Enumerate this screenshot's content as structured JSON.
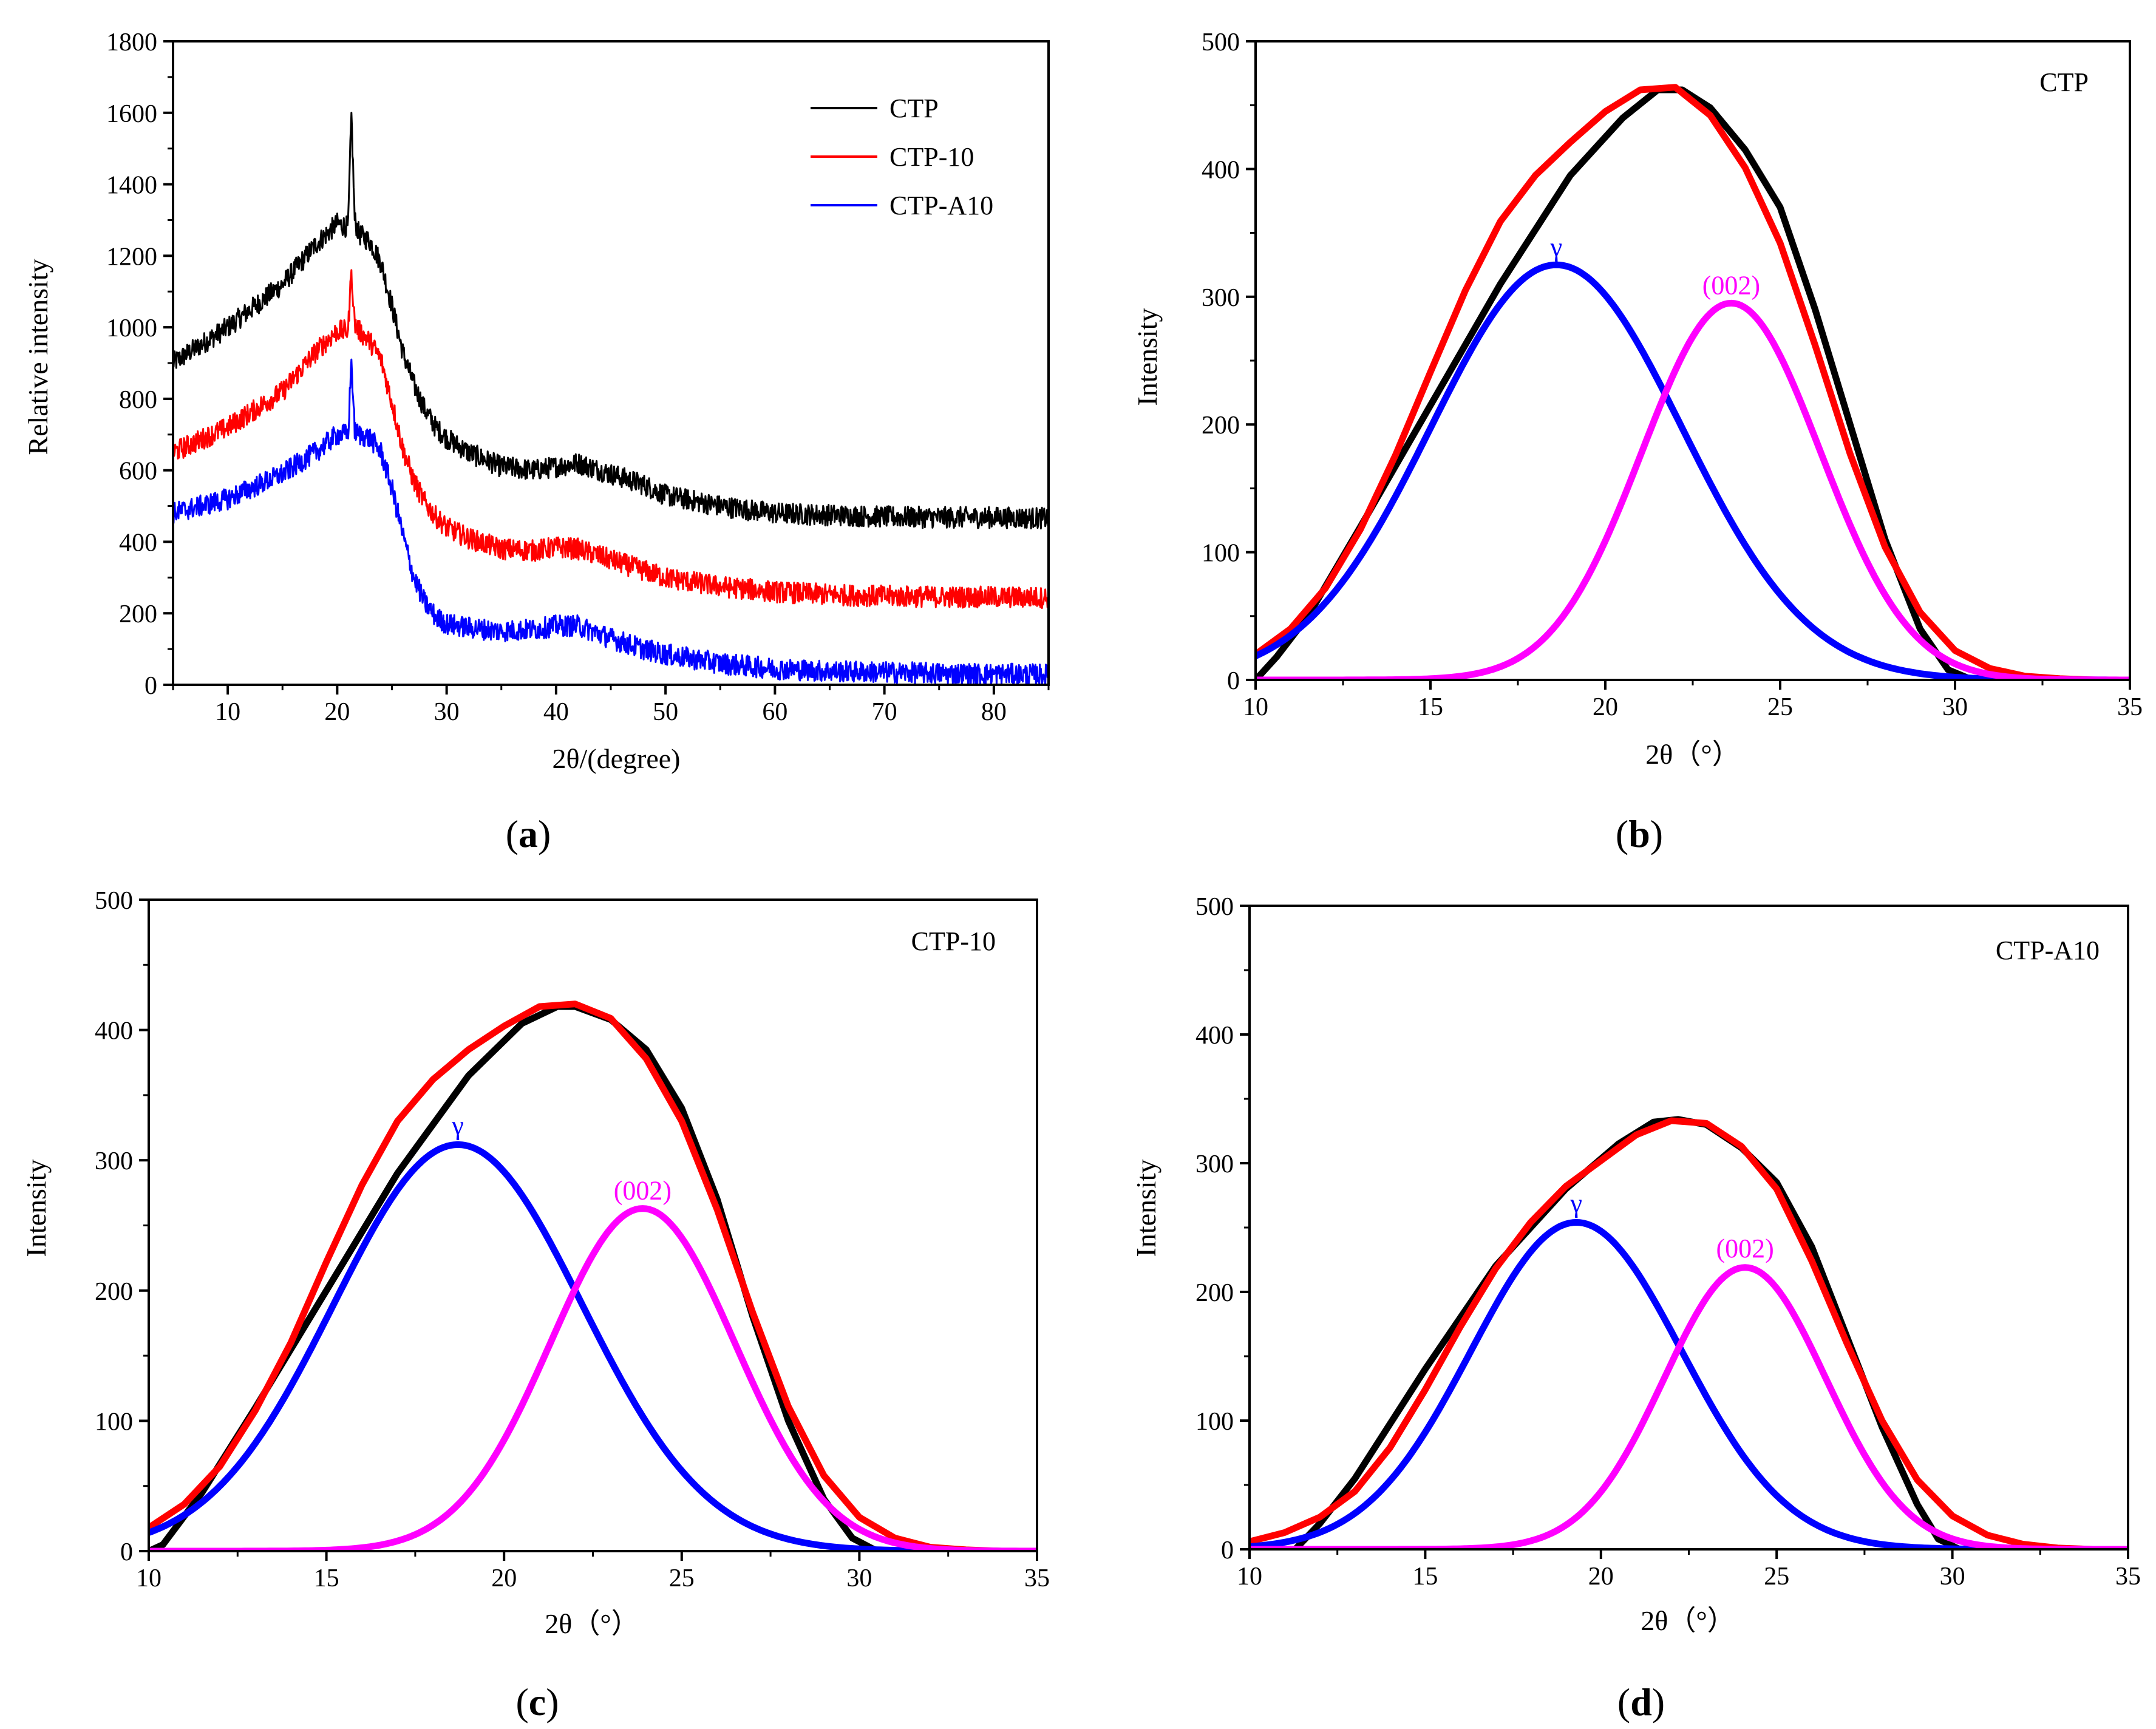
{
  "chart_data": [
    {
      "panel": "a",
      "caption": [
        "(",
        "a",
        ")"
      ],
      "type": "line",
      "xlabel": "2θ/(degree)",
      "ylabel": "Relative intensity",
      "xlim": [
        5,
        85
      ],
      "ylim": [
        0,
        1800
      ],
      "xticks": [
        10,
        20,
        30,
        40,
        50,
        60,
        70,
        80
      ],
      "yticks": [
        0,
        200,
        400,
        600,
        800,
        1000,
        1200,
        1400,
        1600,
        1800
      ],
      "legend": "top-right",
      "noisy": true,
      "series": [
        {
          "name": "CTP",
          "color": "#000000",
          "x": [
            5,
            10,
            15,
            18,
            20,
            21,
            21.3,
            21.6,
            22,
            23,
            24,
            25,
            26,
            27,
            28,
            29,
            30,
            32,
            35,
            38,
            40,
            42,
            45,
            48,
            50,
            55,
            60,
            65,
            70,
            75,
            80,
            85
          ],
          "y": [
            900,
            1000,
            1120,
            1230,
            1290,
            1280,
            1600,
            1300,
            1260,
            1240,
            1180,
            1060,
            930,
            840,
            770,
            720,
            690,
            650,
            610,
            600,
            610,
            620,
            590,
            560,
            530,
            500,
            480,
            475,
            470,
            468,
            468,
            466
          ],
          "spikes": [
            [
              21.3,
              1600
            ]
          ]
        },
        {
          "name": "CTP-10",
          "color": "#ff0000",
          "x": [
            5,
            10,
            15,
            18,
            20,
            21,
            21.3,
            21.6,
            22,
            23,
            24,
            25,
            26,
            27,
            28,
            29,
            30,
            32,
            35,
            38,
            40,
            42,
            45,
            48,
            50,
            55,
            60,
            65,
            70,
            75,
            80,
            85
          ],
          "y": [
            650,
            720,
            820,
            930,
            990,
            990,
            1160,
            1010,
            990,
            960,
            910,
            790,
            660,
            570,
            510,
            470,
            440,
            410,
            380,
            375,
            385,
            380,
            350,
            320,
            300,
            275,
            260,
            252,
            248,
            246,
            245,
            244
          ],
          "spikes": [
            [
              21.3,
              1160
            ]
          ]
        },
        {
          "name": "CTP-A10",
          "color": "#0000ff",
          "x": [
            5,
            10,
            15,
            18,
            20,
            21,
            21.3,
            21.6,
            22,
            23,
            24,
            25,
            26,
            27,
            28,
            29,
            30,
            32,
            35,
            38,
            40,
            42,
            45,
            48,
            50,
            55,
            60,
            65,
            70,
            75,
            80,
            85
          ],
          "y": [
            480,
            520,
            590,
            650,
            700,
            700,
            910,
            710,
            700,
            690,
            650,
            550,
            420,
            300,
            230,
            190,
            170,
            160,
            150,
            155,
            165,
            165,
            130,
            100,
            85,
            60,
            45,
            38,
            35,
            32,
            30,
            28
          ],
          "spikes": [
            [
              21.3,
              910
            ]
          ]
        }
      ]
    },
    {
      "panel": "b",
      "caption": [
        "(",
        "b",
        ")"
      ],
      "type": "line",
      "title": "CTP",
      "xlabel": "2θ（°）",
      "ylabel": "Intensity",
      "xlim": [
        10,
        35
      ],
      "ylim": [
        0,
        500
      ],
      "xticks": [
        10,
        15,
        20,
        25,
        30,
        35
      ],
      "yticks": [
        0,
        100,
        200,
        300,
        400,
        500
      ],
      "annotations": [
        {
          "text": "γ",
          "x": 18.6,
          "y": 332,
          "color": "#0000ff"
        },
        {
          "text": "(002)",
          "x": 23.6,
          "y": 302,
          "color": "#ff00ff"
        }
      ],
      "series": [
        {
          "color": "#000000",
          "x": [
            10,
            10.6,
            11.5,
            13,
            15,
            17,
            19,
            20.5,
            21.5,
            22.2,
            23,
            24,
            25,
            26,
            27,
            28,
            29,
            29.8,
            30.5,
            31.5,
            33,
            35
          ],
          "y": [
            0,
            18,
            50,
            120,
            215,
            310,
            395,
            440,
            462,
            462,
            448,
            415,
            370,
            290,
            200,
            110,
            40,
            8,
            0,
            0,
            0,
            0
          ]
        },
        {
          "color": "#ff0000",
          "x": [
            10,
            11,
            12,
            13,
            14,
            15,
            16,
            17,
            18,
            19,
            20,
            21,
            22,
            23,
            24,
            25,
            26,
            27,
            28,
            29,
            30,
            31,
            32,
            33,
            34,
            35
          ],
          "y": [
            20,
            40,
            72,
            118,
            176,
            241,
            305,
            359,
            395,
            421,
            445,
            462,
            464,
            442,
            401,
            342,
            262,
            177,
            104,
            53,
            23,
            9,
            3,
            1,
            0,
            0
          ]
        },
        {
          "color": "#0000ff",
          "gaussian": {
            "amp": 325,
            "center": 18.6,
            "sigma": 3.6
          }
        },
        {
          "color": "#ff00ff",
          "gaussian": {
            "amp": 295,
            "center": 23.6,
            "sigma": 2.55
          }
        }
      ]
    },
    {
      "panel": "c",
      "caption": [
        "(",
        "c",
        ")"
      ],
      "type": "line",
      "title": "CTP-10",
      "xlabel": "2θ（°）",
      "ylabel": "Intensity",
      "xlim": [
        10,
        35
      ],
      "ylim": [
        0,
        500
      ],
      "xticks": [
        10,
        15,
        20,
        25,
        30,
        35
      ],
      "yticks": [
        0,
        100,
        200,
        300,
        400,
        500
      ],
      "annotations": [
        {
          "text": "γ",
          "x": 18.7,
          "y": 320,
          "color": "#0000ff"
        },
        {
          "text": "(002)",
          "x": 23.9,
          "y": 270,
          "color": "#ff00ff"
        }
      ],
      "series": [
        {
          "color": "#000000",
          "x": [
            10,
            10.4,
            11.5,
            13,
            15,
            17,
            19,
            20.5,
            21.5,
            22,
            23,
            24,
            25,
            26,
            27,
            28,
            29,
            29.8,
            30.5,
            31.5,
            33,
            35
          ],
          "y": [
            0,
            5,
            45,
            110,
            200,
            290,
            365,
            405,
            418,
            418,
            408,
            385,
            340,
            270,
            180,
            100,
            40,
            10,
            0,
            0,
            0,
            0
          ]
        },
        {
          "color": "#ff0000",
          "x": [
            10,
            11,
            12,
            13,
            14,
            15,
            16,
            17,
            18,
            19,
            20,
            21,
            22,
            23,
            24,
            25,
            26,
            27,
            28,
            29,
            30,
            31,
            32,
            33,
            34,
            35
          ],
          "y": [
            18,
            36,
            65,
            108,
            160,
            222,
            281,
            330,
            362,
            385,
            403,
            418,
            420,
            409,
            378,
            330,
            262,
            183,
            111,
            58,
            26,
            10,
            3,
            1,
            0,
            0
          ]
        },
        {
          "color": "#0000ff",
          "gaussian": {
            "amp": 312,
            "center": 18.7,
            "sigma": 3.5
          }
        },
        {
          "color": "#ff00ff",
          "gaussian": {
            "amp": 263,
            "center": 23.9,
            "sigma": 2.6
          }
        }
      ]
    },
    {
      "panel": "d",
      "caption": [
        "(",
        "d",
        ")"
      ],
      "type": "line",
      "title": "CTP-A10",
      "xlabel": "2θ（°）",
      "ylabel": "Intensity",
      "xlim": [
        10,
        35
      ],
      "ylim": [
        0,
        500
      ],
      "xticks": [
        10,
        15,
        20,
        25,
        30,
        35
      ],
      "yticks": [
        0,
        100,
        200,
        300,
        400,
        500
      ],
      "annotations": [
        {
          "text": "γ",
          "x": 19.3,
          "y": 262,
          "color": "#0000ff"
        },
        {
          "text": "(002)",
          "x": 24.1,
          "y": 227,
          "color": "#ff00ff"
        }
      ],
      "series": [
        {
          "color": "#000000",
          "x": [
            10,
            11.3,
            12,
            13,
            15,
            17,
            19,
            20.5,
            21.5,
            22.2,
            23,
            24,
            25,
            26,
            27,
            28,
            29,
            29.6,
            30.2,
            31.5,
            33,
            35
          ],
          "y": [
            0,
            0,
            20,
            55,
            140,
            220,
            280,
            315,
            332,
            334,
            330,
            312,
            285,
            235,
            165,
            95,
            35,
            8,
            0,
            0,
            0,
            0
          ]
        },
        {
          "color": "#ff0000",
          "x": [
            10,
            11,
            12,
            13,
            14,
            15,
            16,
            17,
            18,
            19,
            20,
            21,
            22,
            23,
            24,
            25,
            26,
            27,
            28,
            29,
            30,
            31,
            32,
            33,
            34,
            35
          ],
          "y": [
            6,
            13,
            25,
            45,
            79,
            124,
            173,
            218,
            254,
            282,
            302,
            322,
            333,
            331,
            313,
            280,
            224,
            160,
            100,
            54,
            26,
            11,
            4,
            1,
            0,
            0
          ]
        },
        {
          "color": "#0000ff",
          "gaussian": {
            "amp": 254,
            "center": 19.3,
            "sigma": 3.0
          }
        },
        {
          "color": "#ff00ff",
          "gaussian": {
            "amp": 219,
            "center": 24.1,
            "sigma": 2.3
          }
        }
      ]
    }
  ]
}
